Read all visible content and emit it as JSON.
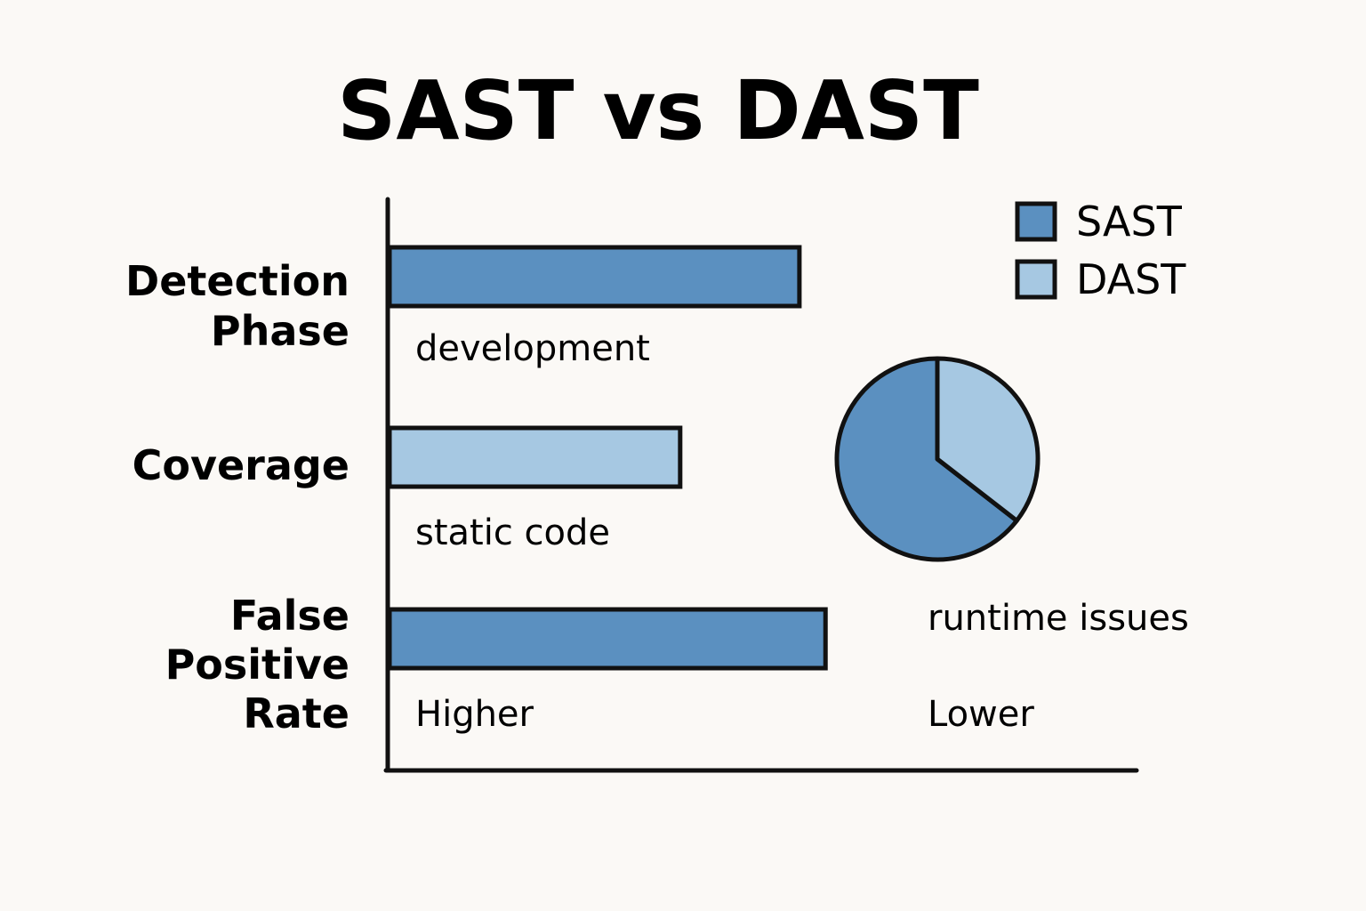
{
  "chart_data": {
    "type": "bar",
    "title": "SAST vs DAST",
    "xlabel": "",
    "ylabel": "",
    "grid": false,
    "legend_placement": "top-right",
    "legend": [
      {
        "name": "SAST",
        "color": "#5b90c0"
      },
      {
        "name": "DAST",
        "color": "#a6c8e2"
      }
    ],
    "categories": [
      {
        "label_lines": [
          "Detection",
          "Phase"
        ],
        "value": 0.55,
        "series": "SAST",
        "note": "development"
      },
      {
        "label_lines": [
          "Coverage"
        ],
        "value": 0.39,
        "series": "DAST",
        "note": "static code"
      },
      {
        "label_lines": [
          "False",
          "Positive",
          "Rate"
        ],
        "value": 0.585,
        "series": "SAST",
        "note": "Higher",
        "note_right": "Lower"
      }
    ],
    "xlim": [
      0,
      1
    ],
    "pie": {
      "slices": [
        {
          "series": "SAST",
          "share": 0.645
        },
        {
          "series": "DAST",
          "share": 0.355
        }
      ],
      "label": "runtime issues"
    }
  }
}
